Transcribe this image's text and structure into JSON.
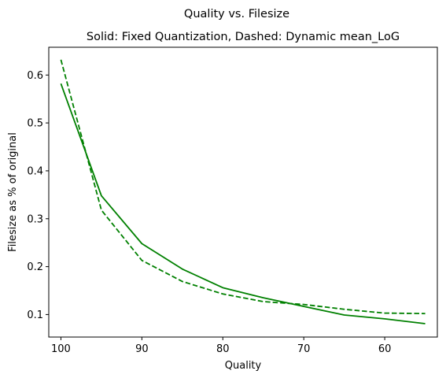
{
  "chart_data": {
    "type": "line",
    "suptitle": "Quality vs. Filesize",
    "title": "Solid: Fixed Quantization, Dashed: Dynamic mean_LoG",
    "xlabel": "Quality",
    "ylabel": "Filesize as % of original",
    "xlim": [
      101.5,
      53.5
    ],
    "ylim": [
      0.053,
      0.658
    ],
    "x_inverted": true,
    "grid": false,
    "xticks": [
      100,
      90,
      80,
      70,
      60
    ],
    "yticks": [
      0.1,
      0.2,
      0.3,
      0.4,
      0.5,
      0.6
    ],
    "x": [
      100,
      95,
      90,
      85,
      80,
      75,
      70,
      65,
      60,
      55
    ],
    "series": [
      {
        "style": "solid",
        "color": "#008000",
        "values": [
          0.582,
          0.348,
          0.248,
          0.195,
          0.156,
          0.135,
          0.117,
          0.099,
          0.091,
          0.081
        ]
      },
      {
        "style": "dashed",
        "color": "#008000",
        "values": [
          0.632,
          0.318,
          0.213,
          0.169,
          0.143,
          0.127,
          0.121,
          0.111,
          0.103,
          0.102
        ]
      }
    ]
  }
}
